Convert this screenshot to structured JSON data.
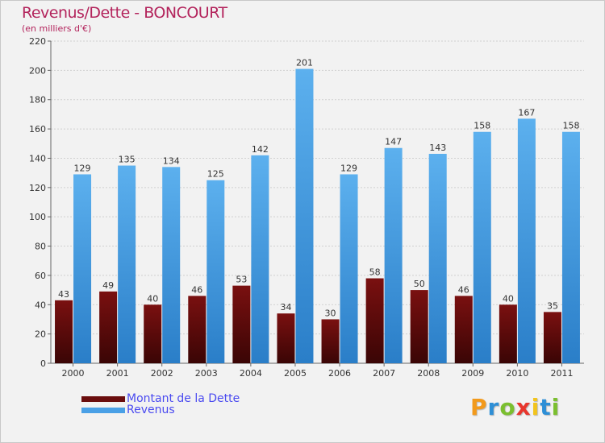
{
  "chart_data": {
    "type": "bar",
    "title": "Revenus/Dette - BONCOURT",
    "subtitle": "(en milliers d'€)",
    "categories": [
      "2000",
      "2001",
      "2002",
      "2003",
      "2004",
      "2005",
      "2006",
      "2007",
      "2008",
      "2009",
      "2010",
      "2011"
    ],
    "series": [
      {
        "name": "Montant de la Dette",
        "values": [
          43,
          49,
          40,
          46,
          53,
          34,
          30,
          58,
          50,
          46,
          40,
          35
        ],
        "color": "#7a1010"
      },
      {
        "name": "Revenus",
        "values": [
          129,
          135,
          134,
          125,
          142,
          201,
          129,
          147,
          143,
          158,
          167,
          158
        ],
        "color": "#4aa0e6"
      }
    ],
    "ylim": [
      0,
      220
    ],
    "yticks": [
      0,
      20,
      40,
      60,
      80,
      100,
      120,
      140,
      160,
      180,
      200,
      220
    ],
    "grid": true,
    "legend_position": "bottom-left",
    "xlabel": "",
    "ylabel": ""
  },
  "logo": {
    "letters": [
      "P",
      "r",
      "o",
      "x",
      "i",
      "t",
      "i"
    ],
    "colors": [
      "#f29a1c",
      "#2e8fd6",
      "#7bbf2f",
      "#e8362d",
      "#f2c41c",
      "#2e8fd6",
      "#7bbf2f"
    ]
  }
}
